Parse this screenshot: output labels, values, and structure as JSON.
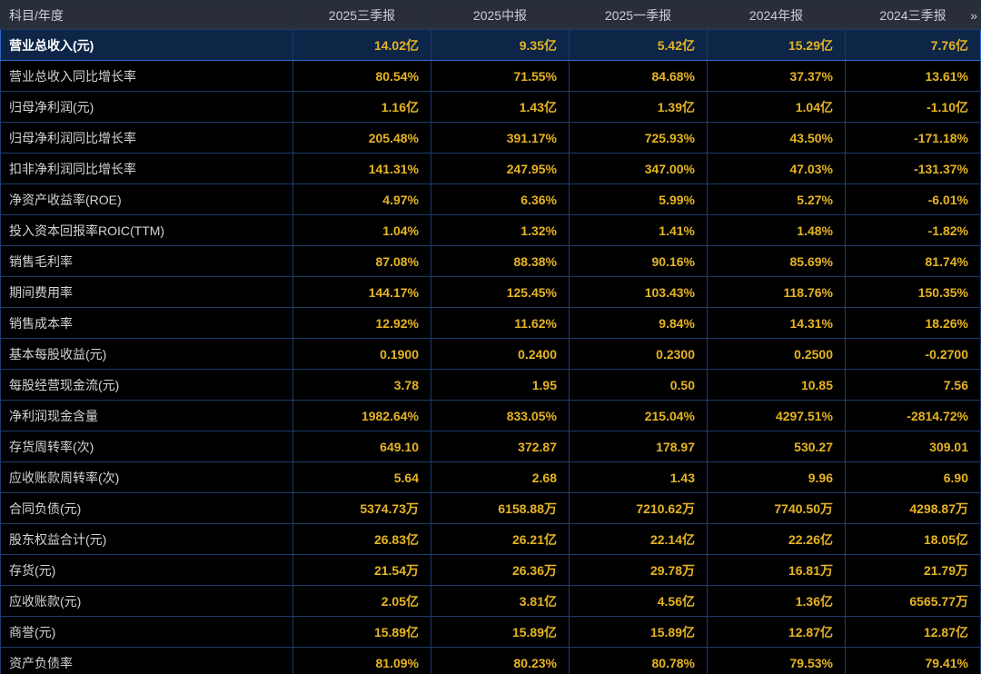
{
  "table": {
    "header": {
      "item_label": "科目/年度",
      "columns": [
        "2025三季报",
        "2025中报",
        "2025一季报",
        "2024年报",
        "2024三季报"
      ],
      "more_icon": "»"
    },
    "rows": [
      {
        "label": "营业总收入(元)",
        "highlighted": true,
        "values": [
          "14.02亿",
          "9.35亿",
          "5.42亿",
          "15.29亿",
          "7.76亿"
        ]
      },
      {
        "label": "营业总收入同比增长率",
        "highlighted": false,
        "values": [
          "80.54%",
          "71.55%",
          "84.68%",
          "37.37%",
          "13.61%"
        ]
      },
      {
        "label": "归母净利润(元)",
        "highlighted": false,
        "values": [
          "1.16亿",
          "1.43亿",
          "1.39亿",
          "1.04亿",
          "-1.10亿"
        ]
      },
      {
        "label": "归母净利润同比增长率",
        "highlighted": false,
        "values": [
          "205.48%",
          "391.17%",
          "725.93%",
          "43.50%",
          "-171.18%"
        ]
      },
      {
        "label": "扣非净利润同比增长率",
        "highlighted": false,
        "values": [
          "141.31%",
          "247.95%",
          "347.00%",
          "47.03%",
          "-131.37%"
        ]
      },
      {
        "label": "净资产收益率(ROE)",
        "highlighted": false,
        "values": [
          "4.97%",
          "6.36%",
          "5.99%",
          "5.27%",
          "-6.01%"
        ]
      },
      {
        "label": "投入资本回报率ROIC(TTM)",
        "highlighted": false,
        "values": [
          "1.04%",
          "1.32%",
          "1.41%",
          "1.48%",
          "-1.82%"
        ]
      },
      {
        "label": "销售毛利率",
        "highlighted": false,
        "values": [
          "87.08%",
          "88.38%",
          "90.16%",
          "85.69%",
          "81.74%"
        ]
      },
      {
        "label": "期间费用率",
        "highlighted": false,
        "values": [
          "144.17%",
          "125.45%",
          "103.43%",
          "118.76%",
          "150.35%"
        ]
      },
      {
        "label": "销售成本率",
        "highlighted": false,
        "values": [
          "12.92%",
          "11.62%",
          "9.84%",
          "14.31%",
          "18.26%"
        ]
      },
      {
        "label": "基本每股收益(元)",
        "highlighted": false,
        "values": [
          "0.1900",
          "0.2400",
          "0.2300",
          "0.2500",
          "-0.2700"
        ]
      },
      {
        "label": "每股经营现金流(元)",
        "highlighted": false,
        "values": [
          "3.78",
          "1.95",
          "0.50",
          "10.85",
          "7.56"
        ]
      },
      {
        "label": "净利润现金含量",
        "highlighted": false,
        "values": [
          "1982.64%",
          "833.05%",
          "215.04%",
          "4297.51%",
          "-2814.72%"
        ]
      },
      {
        "label": "存货周转率(次)",
        "highlighted": false,
        "values": [
          "649.10",
          "372.87",
          "178.97",
          "530.27",
          "309.01"
        ]
      },
      {
        "label": "应收账款周转率(次)",
        "highlighted": false,
        "values": [
          "5.64",
          "2.68",
          "1.43",
          "9.96",
          "6.90"
        ]
      },
      {
        "label": "合同负债(元)",
        "highlighted": false,
        "values": [
          "5374.73万",
          "6158.88万",
          "7210.62万",
          "7740.50万",
          "4298.87万"
        ]
      },
      {
        "label": "股东权益合计(元)",
        "highlighted": false,
        "values": [
          "26.83亿",
          "26.21亿",
          "22.14亿",
          "22.26亿",
          "18.05亿"
        ]
      },
      {
        "label": "存货(元)",
        "highlighted": false,
        "values": [
          "21.54万",
          "26.36万",
          "29.78万",
          "16.81万",
          "21.79万"
        ]
      },
      {
        "label": "应收账款(元)",
        "highlighted": false,
        "values": [
          "2.05亿",
          "3.81亿",
          "4.56亿",
          "1.36亿",
          "6565.77万"
        ]
      },
      {
        "label": "商誉(元)",
        "highlighted": false,
        "values": [
          "15.89亿",
          "15.89亿",
          "15.89亿",
          "12.87亿",
          "12.87亿"
        ]
      },
      {
        "label": "资产负债率",
        "highlighted": false,
        "values": [
          "81.09%",
          "80.23%",
          "80.78%",
          "79.53%",
          "79.41%"
        ]
      }
    ]
  },
  "colors": {
    "background": "#000000",
    "header_bg": "#2a2e39",
    "header_text": "#c9cdd6",
    "grid_border": "#1c3c6b",
    "value_text": "#e6b422",
    "label_text": "#d4d4d4",
    "highlight_bg": "#0d2547",
    "highlight_border": "#2f66c8"
  }
}
